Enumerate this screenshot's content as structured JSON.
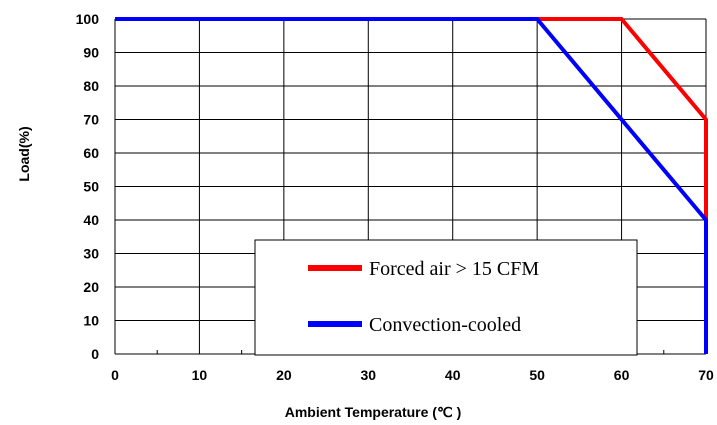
{
  "chart_data": {
    "type": "line",
    "xlabel": "Ambient  Temperature (℃ )",
    "ylabel": "Load(%)",
    "xlim": [
      0,
      70
    ],
    "ylim": [
      0,
      100
    ],
    "x_ticks": [
      "0",
      "10",
      "20",
      "30",
      "40",
      "50",
      "60",
      "70"
    ],
    "y_ticks": [
      "0",
      "10",
      "20",
      "30",
      "40",
      "50",
      "60",
      "70",
      "80",
      "90",
      "100"
    ],
    "grid": true,
    "legend_position": "bottom-right",
    "series": [
      {
        "name": "Forced air > 15 CFM",
        "color": "#ff0000",
        "x": [
          0,
          60,
          70,
          70
        ],
        "y": [
          100,
          100,
          70,
          40
        ]
      },
      {
        "name": "Convection-cooled",
        "color": "#0000ff",
        "x": [
          0,
          50,
          70,
          70
        ],
        "y": [
          100,
          100,
          40,
          0
        ]
      }
    ]
  }
}
